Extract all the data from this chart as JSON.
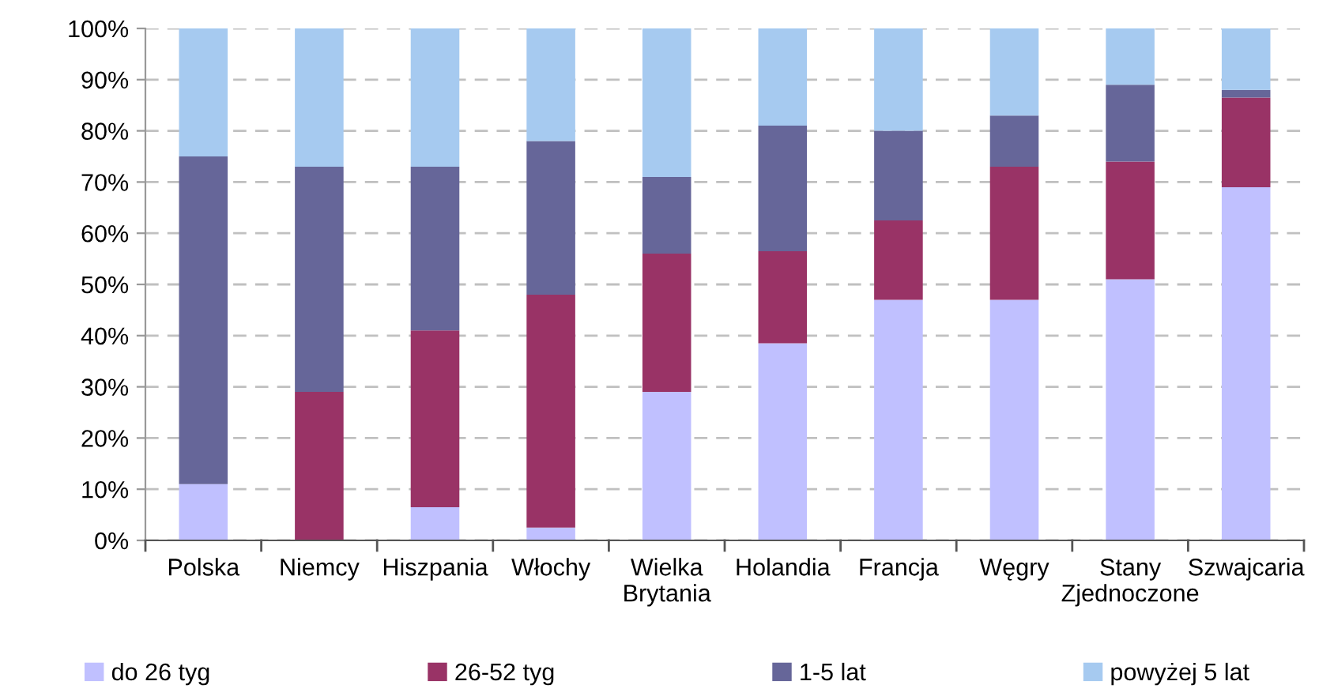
{
  "chart_data": {
    "type": "bar",
    "stacked": true,
    "categories": [
      "Polska",
      "Niemcy",
      "Hiszpania",
      "Włochy",
      "Wielka\nBrytania",
      "Holandia",
      "Francja",
      "Węgry",
      "Stany\nZjednoczone",
      "Szwajcaria"
    ],
    "series": [
      {
        "name": "do 26 tyg",
        "color": "#c0c0ff",
        "values": [
          11,
          0,
          6.5,
          2.5,
          29,
          38.5,
          47,
          47,
          51,
          69
        ]
      },
      {
        "name": "26-52 tyg",
        "color": "#993366",
        "values": [
          0,
          29,
          34.5,
          45.5,
          27,
          18,
          15.5,
          26,
          23,
          17.5
        ]
      },
      {
        "name": "1-5 lat",
        "color": "#666699",
        "values": [
          64,
          44,
          32,
          30,
          15,
          24.5,
          17.5,
          10,
          15,
          1.5
        ]
      },
      {
        "name": "powyżej 5 lat",
        "color": "#a6caf0",
        "values": [
          25,
          27,
          27,
          22,
          29,
          19,
          20,
          17,
          11,
          12
        ]
      }
    ],
    "ylim": [
      0,
      100
    ],
    "yticks": [
      {
        "value": 0,
        "label": "0%"
      },
      {
        "value": 10,
        "label": "10%"
      },
      {
        "value": 20,
        "label": "20%"
      },
      {
        "value": 30,
        "label": "30%"
      },
      {
        "value": 40,
        "label": "40%"
      },
      {
        "value": 50,
        "label": "50%"
      },
      {
        "value": 60,
        "label": "60%"
      },
      {
        "value": 70,
        "label": "70%"
      },
      {
        "value": 80,
        "label": "80%"
      },
      {
        "value": 90,
        "label": "90%"
      },
      {
        "value": 100,
        "label": "100%"
      }
    ],
    "grid": "y",
    "legend": "bottom"
  }
}
